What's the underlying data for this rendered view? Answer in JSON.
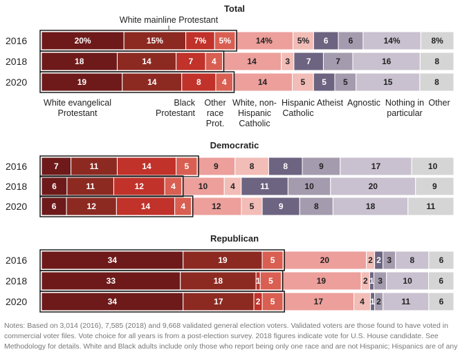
{
  "chart_data": [
    {
      "type": "bar",
      "stacked": true,
      "orientation": "horizontal",
      "title": "Total",
      "categories": [
        "2016",
        "2018",
        "2020"
      ],
      "series": [
        {
          "name": "White evangelical Protestant",
          "values": [
            20,
            18,
            19
          ],
          "color": "#6e1a1a"
        },
        {
          "name": "White mainline Protestant",
          "values": [
            15,
            14,
            14
          ],
          "color": "#8c2a22"
        },
        {
          "name": "Black Protestant",
          "values": [
            7,
            7,
            8
          ],
          "color": "#c0322a"
        },
        {
          "name": "Other race Prot.",
          "values": [
            5,
            4,
            4
          ],
          "color": "#d85f52"
        },
        {
          "name": "White, non-Hispanic Catholic",
          "values": [
            14,
            14,
            14
          ],
          "color": "#ec9f9b"
        },
        {
          "name": "Hispanic Catholic",
          "values": [
            5,
            3,
            5
          ],
          "color": "#f2bcb7"
        },
        {
          "name": "Atheist",
          "values": [
            6,
            7,
            5
          ],
          "color": "#6d6481"
        },
        {
          "name": "Agnostic",
          "values": [
            6,
            7,
            5
          ],
          "color": "#a59bae"
        },
        {
          "name": "Nothing in particular",
          "values": [
            14,
            16,
            15
          ],
          "color": "#c9c1cf"
        },
        {
          "name": "Other",
          "values": [
            8,
            8,
            8
          ],
          "color": "#d5d5d5"
        }
      ],
      "labels": [
        [
          "20%",
          "15%",
          "7%",
          "5%",
          "14%",
          "5%",
          "6",
          "6",
          "14%",
          "8%"
        ],
        [
          "18",
          "14",
          "7",
          "4",
          "14",
          "3",
          "7",
          "7",
          "16",
          "8"
        ],
        [
          "19",
          "14",
          "8",
          "4",
          "14",
          "5",
          "5",
          "5",
          "15",
          "8"
        ]
      ]
    },
    {
      "type": "bar",
      "stacked": true,
      "orientation": "horizontal",
      "title": "Democratic",
      "categories": [
        "2016",
        "2018",
        "2020"
      ],
      "series": [
        {
          "name": "White evangelical Protestant",
          "values": [
            7,
            6,
            6
          ],
          "color": "#6e1a1a"
        },
        {
          "name": "White mainline Protestant",
          "values": [
            11,
            11,
            12
          ],
          "color": "#8c2a22"
        },
        {
          "name": "Black Protestant",
          "values": [
            14,
            12,
            14
          ],
          "color": "#c0322a"
        },
        {
          "name": "Other race Prot.",
          "values": [
            5,
            4,
            4
          ],
          "color": "#d85f52"
        },
        {
          "name": "White, non-Hispanic Catholic",
          "values": [
            9,
            10,
            12
          ],
          "color": "#ec9f9b"
        },
        {
          "name": "Hispanic Catholic",
          "values": [
            8,
            4,
            5
          ],
          "color": "#f2bcb7"
        },
        {
          "name": "Atheist",
          "values": [
            8,
            11,
            9
          ],
          "color": "#6d6481"
        },
        {
          "name": "Agnostic",
          "values": [
            9,
            10,
            8
          ],
          "color": "#a59bae"
        },
        {
          "name": "Nothing in particular",
          "values": [
            17,
            20,
            18
          ],
          "color": "#c9c1cf"
        },
        {
          "name": "Other",
          "values": [
            10,
            9,
            11
          ],
          "color": "#d5d5d5"
        }
      ],
      "labels": [
        [
          "7",
          "11",
          "14",
          "5",
          "9",
          "8",
          "8",
          "9",
          "17",
          "10"
        ],
        [
          "6",
          "11",
          "12",
          "4",
          "10",
          "4",
          "11",
          "10",
          "20",
          "9"
        ],
        [
          "6",
          "12",
          "14",
          "4",
          "12",
          "5",
          "9",
          "8",
          "18",
          "11"
        ]
      ]
    },
    {
      "type": "bar",
      "stacked": true,
      "orientation": "horizontal",
      "title": "Republican",
      "categories": [
        "2016",
        "2018",
        "2020"
      ],
      "series": [
        {
          "name": "White evangelical Protestant",
          "values": [
            34,
            33,
            34
          ],
          "color": "#6e1a1a"
        },
        {
          "name": "White mainline Protestant",
          "values": [
            19,
            18,
            17
          ],
          "color": "#8c2a22"
        },
        {
          "name": "Black Protestant",
          "values": [
            0,
            1,
            2
          ],
          "color": "#c0322a"
        },
        {
          "name": "Other race Prot.",
          "values": [
            5,
            5,
            5
          ],
          "color": "#d85f52"
        },
        {
          "name": "White, non-Hispanic Catholic",
          "values": [
            20,
            19,
            17
          ],
          "color": "#ec9f9b"
        },
        {
          "name": "Hispanic Catholic",
          "values": [
            2,
            2,
            4
          ],
          "color": "#f2bcb7"
        },
        {
          "name": "Atheist",
          "values": [
            2,
            1,
            1
          ],
          "color": "#6d6481"
        },
        {
          "name": "Agnostic",
          "values": [
            3,
            3,
            2
          ],
          "color": "#a59bae"
        },
        {
          "name": "Nothing in particular",
          "values": [
            8,
            10,
            11
          ],
          "color": "#c9c1cf"
        },
        {
          "name": "Other",
          "values": [
            6,
            6,
            6
          ],
          "color": "#d5d5d5"
        }
      ],
      "labels": [
        [
          "34",
          "19",
          "",
          "5",
          "20",
          "2",
          "2",
          "3",
          "8",
          "6"
        ],
        [
          "33",
          "18",
          "1",
          "5",
          "19",
          "2",
          "1",
          "3",
          "10",
          "6"
        ],
        [
          "34",
          "17",
          "2",
          "5",
          "17",
          "4",
          "1",
          "2",
          "11",
          "6"
        ]
      ]
    }
  ],
  "category_labels": {
    "white_mainline": "White mainline Protestant",
    "white_evangelical": [
      "White evangelical",
      "Protestant"
    ],
    "black_protestant": [
      "Black",
      "Protestant"
    ],
    "other_race": [
      "Other",
      "race",
      "Prot."
    ],
    "catholic": [
      "White, non-",
      "Hispanic",
      "Catholic"
    ],
    "hispanic_catholic": [
      "Hispanic",
      "Catholic"
    ],
    "atheist": [
      "Atheist"
    ],
    "agnostic": [
      "Agnostic"
    ],
    "nothing": [
      "Nothing in",
      "particular"
    ],
    "other": [
      "Other"
    ]
  },
  "notes": "Notes: Based on 3,014 (2016), 7,585 (2018) and 9,668 validated general election voters. Validated voters are those found to have voted in commercial voter files. Vote choice for all years is from a post-election survey. 2018 figures indicate vote for U.S. House candidate. See Methodology for details. White and Black adults include only those who report being only one race and are not Hispanic; Hispanics are of any"
}
